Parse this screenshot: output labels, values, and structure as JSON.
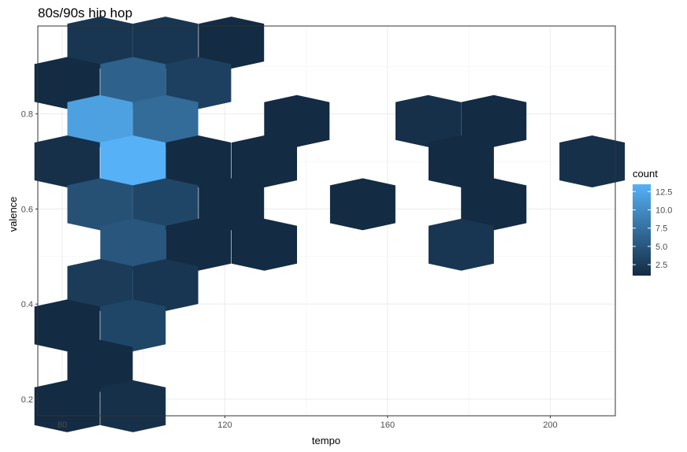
{
  "chart_data": {
    "type": "heatmap",
    "subtype": "hexbin",
    "title": "80s/90s hip hop",
    "xlabel": "tempo",
    "ylabel": "valence",
    "xlim": [
      74,
      216
    ],
    "ylim": [
      0.165,
      0.985
    ],
    "x_ticks": [
      80,
      120,
      160,
      200
    ],
    "y_ticks": [
      0.2,
      0.4,
      0.6,
      0.8
    ],
    "x_tick_labels": [
      "80",
      "120",
      "160",
      "200"
    ],
    "y_tick_labels": [
      "0.2",
      "0.4",
      "0.6",
      "0.8"
    ],
    "grid": true,
    "legend": {
      "title": "count",
      "position": "right",
      "breaks": [
        2.5,
        5.0,
        7.5,
        10.0,
        12.5
      ],
      "break_labels": [
        "2.5",
        "5.0",
        "7.5",
        "10.0",
        "12.5"
      ],
      "range": [
        1,
        13.5
      ],
      "color_low": "#132B43",
      "color_high": "#56B1F7"
    },
    "bins": [
      {
        "tempo": 89.3,
        "valence": 0.95,
        "count": 2
      },
      {
        "tempo": 105.4,
        "valence": 0.95,
        "count": 2
      },
      {
        "tempo": 121.6,
        "valence": 0.95,
        "count": 1
      },
      {
        "tempo": 81.2,
        "valence": 0.865,
        "count": 1
      },
      {
        "tempo": 97.4,
        "valence": 0.865,
        "count": 6
      },
      {
        "tempo": 113.5,
        "valence": 0.865,
        "count": 3
      },
      {
        "tempo": 89.3,
        "valence": 0.785,
        "count": 12
      },
      {
        "tempo": 105.4,
        "valence": 0.785,
        "count": 7
      },
      {
        "tempo": 137.7,
        "valence": 0.785,
        "count": 1
      },
      {
        "tempo": 170.0,
        "valence": 0.785,
        "count": 1.5
      },
      {
        "tempo": 186.1,
        "valence": 0.785,
        "count": 1
      },
      {
        "tempo": 81.2,
        "valence": 0.7,
        "count": 1.5
      },
      {
        "tempo": 97.4,
        "valence": 0.7,
        "count": 13.5
      },
      {
        "tempo": 113.5,
        "valence": 0.7,
        "count": 1
      },
      {
        "tempo": 129.7,
        "valence": 0.7,
        "count": 1
      },
      {
        "tempo": 178.1,
        "valence": 0.7,
        "count": 1
      },
      {
        "tempo": 210.3,
        "valence": 0.7,
        "count": 1.5
      },
      {
        "tempo": 89.3,
        "valence": 0.61,
        "count": 4.5
      },
      {
        "tempo": 105.4,
        "valence": 0.61,
        "count": 3.5
      },
      {
        "tempo": 121.6,
        "valence": 0.61,
        "count": 1
      },
      {
        "tempo": 153.9,
        "valence": 0.61,
        "count": 1
      },
      {
        "tempo": 186.1,
        "valence": 0.61,
        "count": 1
      },
      {
        "tempo": 97.4,
        "valence": 0.525,
        "count": 5
      },
      {
        "tempo": 113.5,
        "valence": 0.525,
        "count": 1
      },
      {
        "tempo": 129.7,
        "valence": 0.525,
        "count": 1
      },
      {
        "tempo": 178.1,
        "valence": 0.525,
        "count": 2
      },
      {
        "tempo": 89.3,
        "valence": 0.44,
        "count": 2.5
      },
      {
        "tempo": 105.4,
        "valence": 0.44,
        "count": 2
      },
      {
        "tempo": 81.2,
        "valence": 0.355,
        "count": 1
      },
      {
        "tempo": 97.4,
        "valence": 0.355,
        "count": 3.5
      },
      {
        "tempo": 89.3,
        "valence": 0.27,
        "count": 1
      },
      {
        "tempo": 81.2,
        "valence": 0.185,
        "count": 1
      },
      {
        "tempo": 97.4,
        "valence": 0.185,
        "count": 1.5
      }
    ]
  }
}
